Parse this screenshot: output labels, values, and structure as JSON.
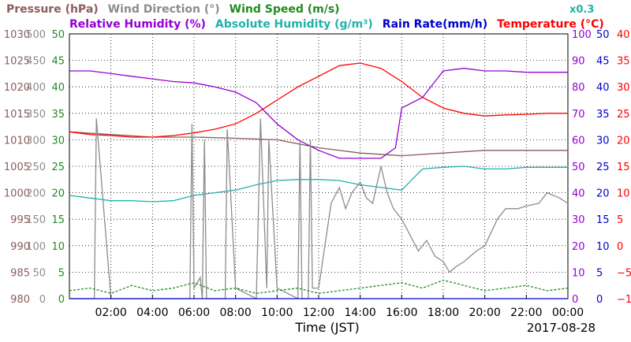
{
  "chart_data": {
    "type": "line",
    "legend": [
      [
        {
          "text": "Pressure (hPa)",
          "color": "#8b5c5c"
        },
        {
          "text": "Wind Direction (°)",
          "color": "#8c8c8c"
        },
        {
          "text": "Wind Speed (m/s)",
          "color": "#228b22"
        }
      ],
      [
        {
          "text": "Relative Humidity (%)",
          "color": "#9400d3"
        },
        {
          "text": "Absolute Humidity (g/m³)",
          "color": "#20b2aa"
        },
        {
          "text": "Rain Rate(mm/h)",
          "color": "#0000cd"
        },
        {
          "text": "Temperature (°C)",
          "color": "#ff0000"
        }
      ]
    ],
    "scale_note": "x0.3",
    "xlabel": "Time (JST)",
    "date_label": "2017-08-28",
    "x_ticks": [
      "02:00",
      "04:00",
      "06:00",
      "08:00",
      "10:00",
      "12:00",
      "14:00",
      "16:00",
      "18:00",
      "20:00",
      "22:00",
      "00:00"
    ],
    "x_range": [
      0,
      24
    ],
    "axes": [
      {
        "series": "Pressure",
        "color": "#8b5c5c",
        "range": [
          980,
          1030
        ],
        "ticks": [
          "980",
          "985",
          "990",
          "995",
          "1000",
          "1005",
          "1010",
          "1015",
          "1020",
          "1025",
          "1030"
        ]
      },
      {
        "series": "Wind Direction",
        "color": "#8c8c8c",
        "range": [
          0,
          500
        ],
        "ticks": [
          "0",
          "50",
          "100",
          "150",
          "200",
          "250",
          "300",
          "350",
          "400",
          "450",
          "500"
        ]
      },
      {
        "series": "Wind Speed",
        "color": "#228b22",
        "range": [
          0,
          50
        ],
        "ticks": [
          "0",
          "5",
          "10",
          "15",
          "20",
          "25",
          "30",
          "35",
          "40",
          "45",
          "50"
        ]
      },
      {
        "series": "Relative Humidity",
        "color": "#9400d3",
        "range": [
          0,
          100
        ],
        "ticks": [
          "0",
          "10",
          "20",
          "30",
          "40",
          "50",
          "60",
          "70",
          "80",
          "90",
          "100"
        ]
      },
      {
        "series": "Rain Rate",
        "color": "#0000cd",
        "range": [
          0,
          50
        ],
        "ticks": [
          "0",
          "5",
          "10",
          "15",
          "20",
          "25",
          "30",
          "35",
          "40",
          "45",
          "50"
        ]
      },
      {
        "series": "Temperature",
        "color": "#ff0000",
        "range": [
          -10,
          40
        ],
        "ticks": [
          "−10",
          "−5",
          "0",
          "5",
          "10",
          "15",
          "20",
          "25",
          "30",
          "35",
          "40"
        ]
      }
    ],
    "series": [
      {
        "name": "Pressure",
        "color": "#8b5c5c",
        "x": [
          0,
          2,
          4,
          6,
          8,
          10,
          12,
          14,
          16,
          18,
          20,
          22,
          24
        ],
        "y": [
          1011.5,
          1011,
          1010.5,
          1010.5,
          1010.3,
          1010,
          1008.5,
          1007.5,
          1007,
          1007.5,
          1008,
          1008,
          1008
        ]
      },
      {
        "name": "Temperature",
        "color": "#ff0000",
        "x": [
          0,
          1,
          2,
          3,
          4,
          5,
          6,
          7,
          8,
          9,
          10,
          11,
          12,
          13,
          14,
          15,
          16,
          17,
          18,
          19,
          20,
          21,
          22,
          23,
          24
        ],
        "y": [
          21.5,
          21,
          20.8,
          20.5,
          20.5,
          20.8,
          21.3,
          22,
          23,
          25,
          27.5,
          30,
          32,
          34,
          34.5,
          33.5,
          31,
          28,
          26,
          25,
          24.5,
          24.7,
          24.8,
          25,
          25
        ]
      },
      {
        "name": "Absolute Humidity",
        "color": "#20b2aa",
        "x": [
          0,
          1,
          2,
          3,
          4,
          5,
          6,
          7,
          8,
          9,
          10,
          11,
          12,
          13,
          14,
          15,
          16,
          17,
          18,
          19,
          20,
          21,
          22,
          23,
          24
        ],
        "y": [
          19.5,
          19,
          18.5,
          18.5,
          18.3,
          18.5,
          19.5,
          20,
          20.5,
          21.5,
          22.3,
          22.5,
          22.5,
          22.3,
          21.5,
          21,
          20.5,
          24.5,
          24.8,
          25,
          24.5,
          24.5,
          24.8,
          24.8,
          24.8
        ]
      },
      {
        "name": "Relative Humidity",
        "color": "#9400d3",
        "x": [
          0,
          1,
          2,
          3,
          4,
          5,
          6,
          7,
          8,
          8.5,
          9,
          10,
          11,
          12,
          13,
          14,
          15,
          15.7,
          16,
          17,
          18,
          19,
          20,
          21,
          22,
          23,
          24
        ],
        "y": [
          86,
          86,
          85,
          84,
          83,
          82,
          81.5,
          80,
          78,
          76,
          74,
          66,
          60,
          56,
          53,
          53,
          53,
          57,
          72,
          76,
          86,
          87,
          86,
          86,
          85.5,
          85.5,
          85.5
        ]
      },
      {
        "name": "Wind Direction",
        "color": "#8c8c8c",
        "x": [
          0,
          1.2,
          1.3,
          2,
          2.5,
          5.8,
          5.9,
          6,
          6.3,
          6.4,
          6.5,
          6.6,
          7.5,
          7.6,
          8,
          9,
          9.2,
          9.5,
          9.6,
          10,
          11,
          11.1,
          11.2,
          11.5,
          11.6,
          11.7,
          12,
          12.6,
          13,
          13.3,
          13.6,
          14,
          14.3,
          14.6,
          15,
          15.3,
          15.6,
          16,
          16.4,
          16.8,
          17.2,
          17.6,
          18,
          18.3,
          18.6,
          19,
          19.6,
          20,
          20.6,
          21,
          21.6,
          22,
          22.6,
          23,
          23.6,
          24
        ],
        "y": [
          0,
          0,
          340,
          0,
          0,
          0,
          330,
          20,
          40,
          0,
          300,
          0,
          0,
          320,
          20,
          0,
          340,
          20,
          300,
          20,
          0,
          300,
          0,
          0,
          300,
          20,
          20,
          180,
          210,
          170,
          200,
          220,
          190,
          180,
          250,
          200,
          170,
          150,
          120,
          90,
          110,
          80,
          70,
          50,
          60,
          70,
          90,
          100,
          150,
          170,
          170,
          175,
          180,
          200,
          190,
          180
        ]
      },
      {
        "name": "Wind Speed",
        "color": "#228b22",
        "x": [
          0,
          1,
          2,
          3,
          4,
          5,
          6,
          7,
          8,
          9,
          10,
          11,
          12,
          13,
          14,
          15,
          16,
          17,
          18,
          19,
          20,
          21,
          22,
          23,
          24
        ],
        "y": [
          1.5,
          2,
          1,
          2.5,
          1.5,
          2,
          3,
          1.5,
          2,
          1,
          1.5,
          2,
          1,
          1.5,
          2,
          2.5,
          3,
          2,
          3.5,
          2.5,
          1.5,
          2,
          2.5,
          1.5,
          2
        ]
      },
      {
        "name": "Rain Rate",
        "color": "#0000cd",
        "x": [
          0,
          24
        ],
        "y": [
          0,
          0
        ]
      }
    ]
  }
}
